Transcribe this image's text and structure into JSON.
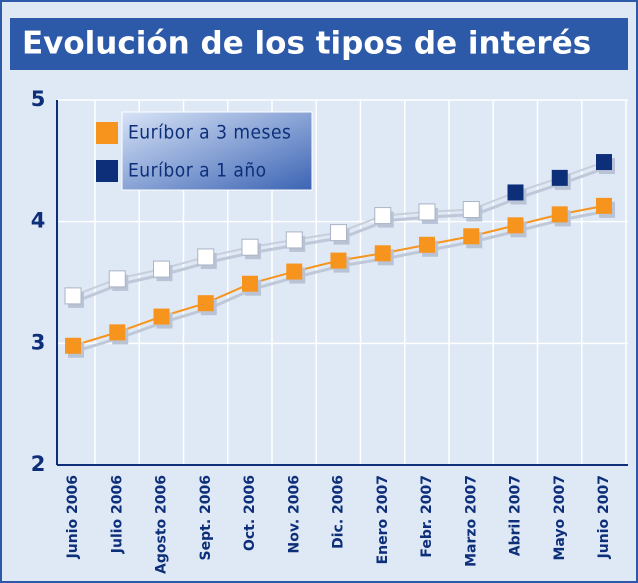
{
  "chart_data": {
    "type": "line",
    "title": "Evolución de los tipos de interés",
    "categories": [
      "Junio 2006",
      "Julio 2006",
      "Agosto 2006",
      "Sept. 2006",
      "Oct. 2006",
      "Nov. 2006",
      "Dic. 2006",
      "Enero 2007",
      "Febr. 2007",
      "Marzo 2007",
      "Abril 2007",
      "Mayo 2007",
      "Junio 2007"
    ],
    "series": [
      {
        "name": "Euríbor a 3 meses",
        "color": "#f7941d",
        "line_color": "#f7941d",
        "marker_colors": [
          "#f7941d",
          "#f7941d",
          "#f7941d",
          "#f7941d",
          "#f7941d",
          "#f7941d",
          "#f7941d",
          "#f7941d",
          "#f7941d",
          "#f7941d",
          "#f7941d",
          "#f7941d",
          "#f7941d"
        ],
        "values": [
          2.98,
          3.09,
          3.22,
          3.33,
          3.49,
          3.59,
          3.68,
          3.74,
          3.81,
          3.88,
          3.97,
          4.06,
          4.13
        ]
      },
      {
        "name": "Euríbor a 1 año",
        "color": "#0d2f7a",
        "line_color": "#c8cfdc",
        "marker_colors": [
          "#ffffff",
          "#ffffff",
          "#ffffff",
          "#ffffff",
          "#ffffff",
          "#ffffff",
          "#ffffff",
          "#ffffff",
          "#ffffff",
          "#ffffff",
          "#0d2f7a",
          "#0d2f7a",
          "#0d2f7a"
        ],
        "values": [
          3.39,
          3.53,
          3.61,
          3.71,
          3.79,
          3.85,
          3.91,
          4.05,
          4.08,
          4.1,
          4.24,
          4.36,
          4.49
        ]
      }
    ],
    "ylim": [
      2,
      5
    ],
    "yticks": [
      2,
      3,
      4,
      5
    ],
    "grid": true
  }
}
